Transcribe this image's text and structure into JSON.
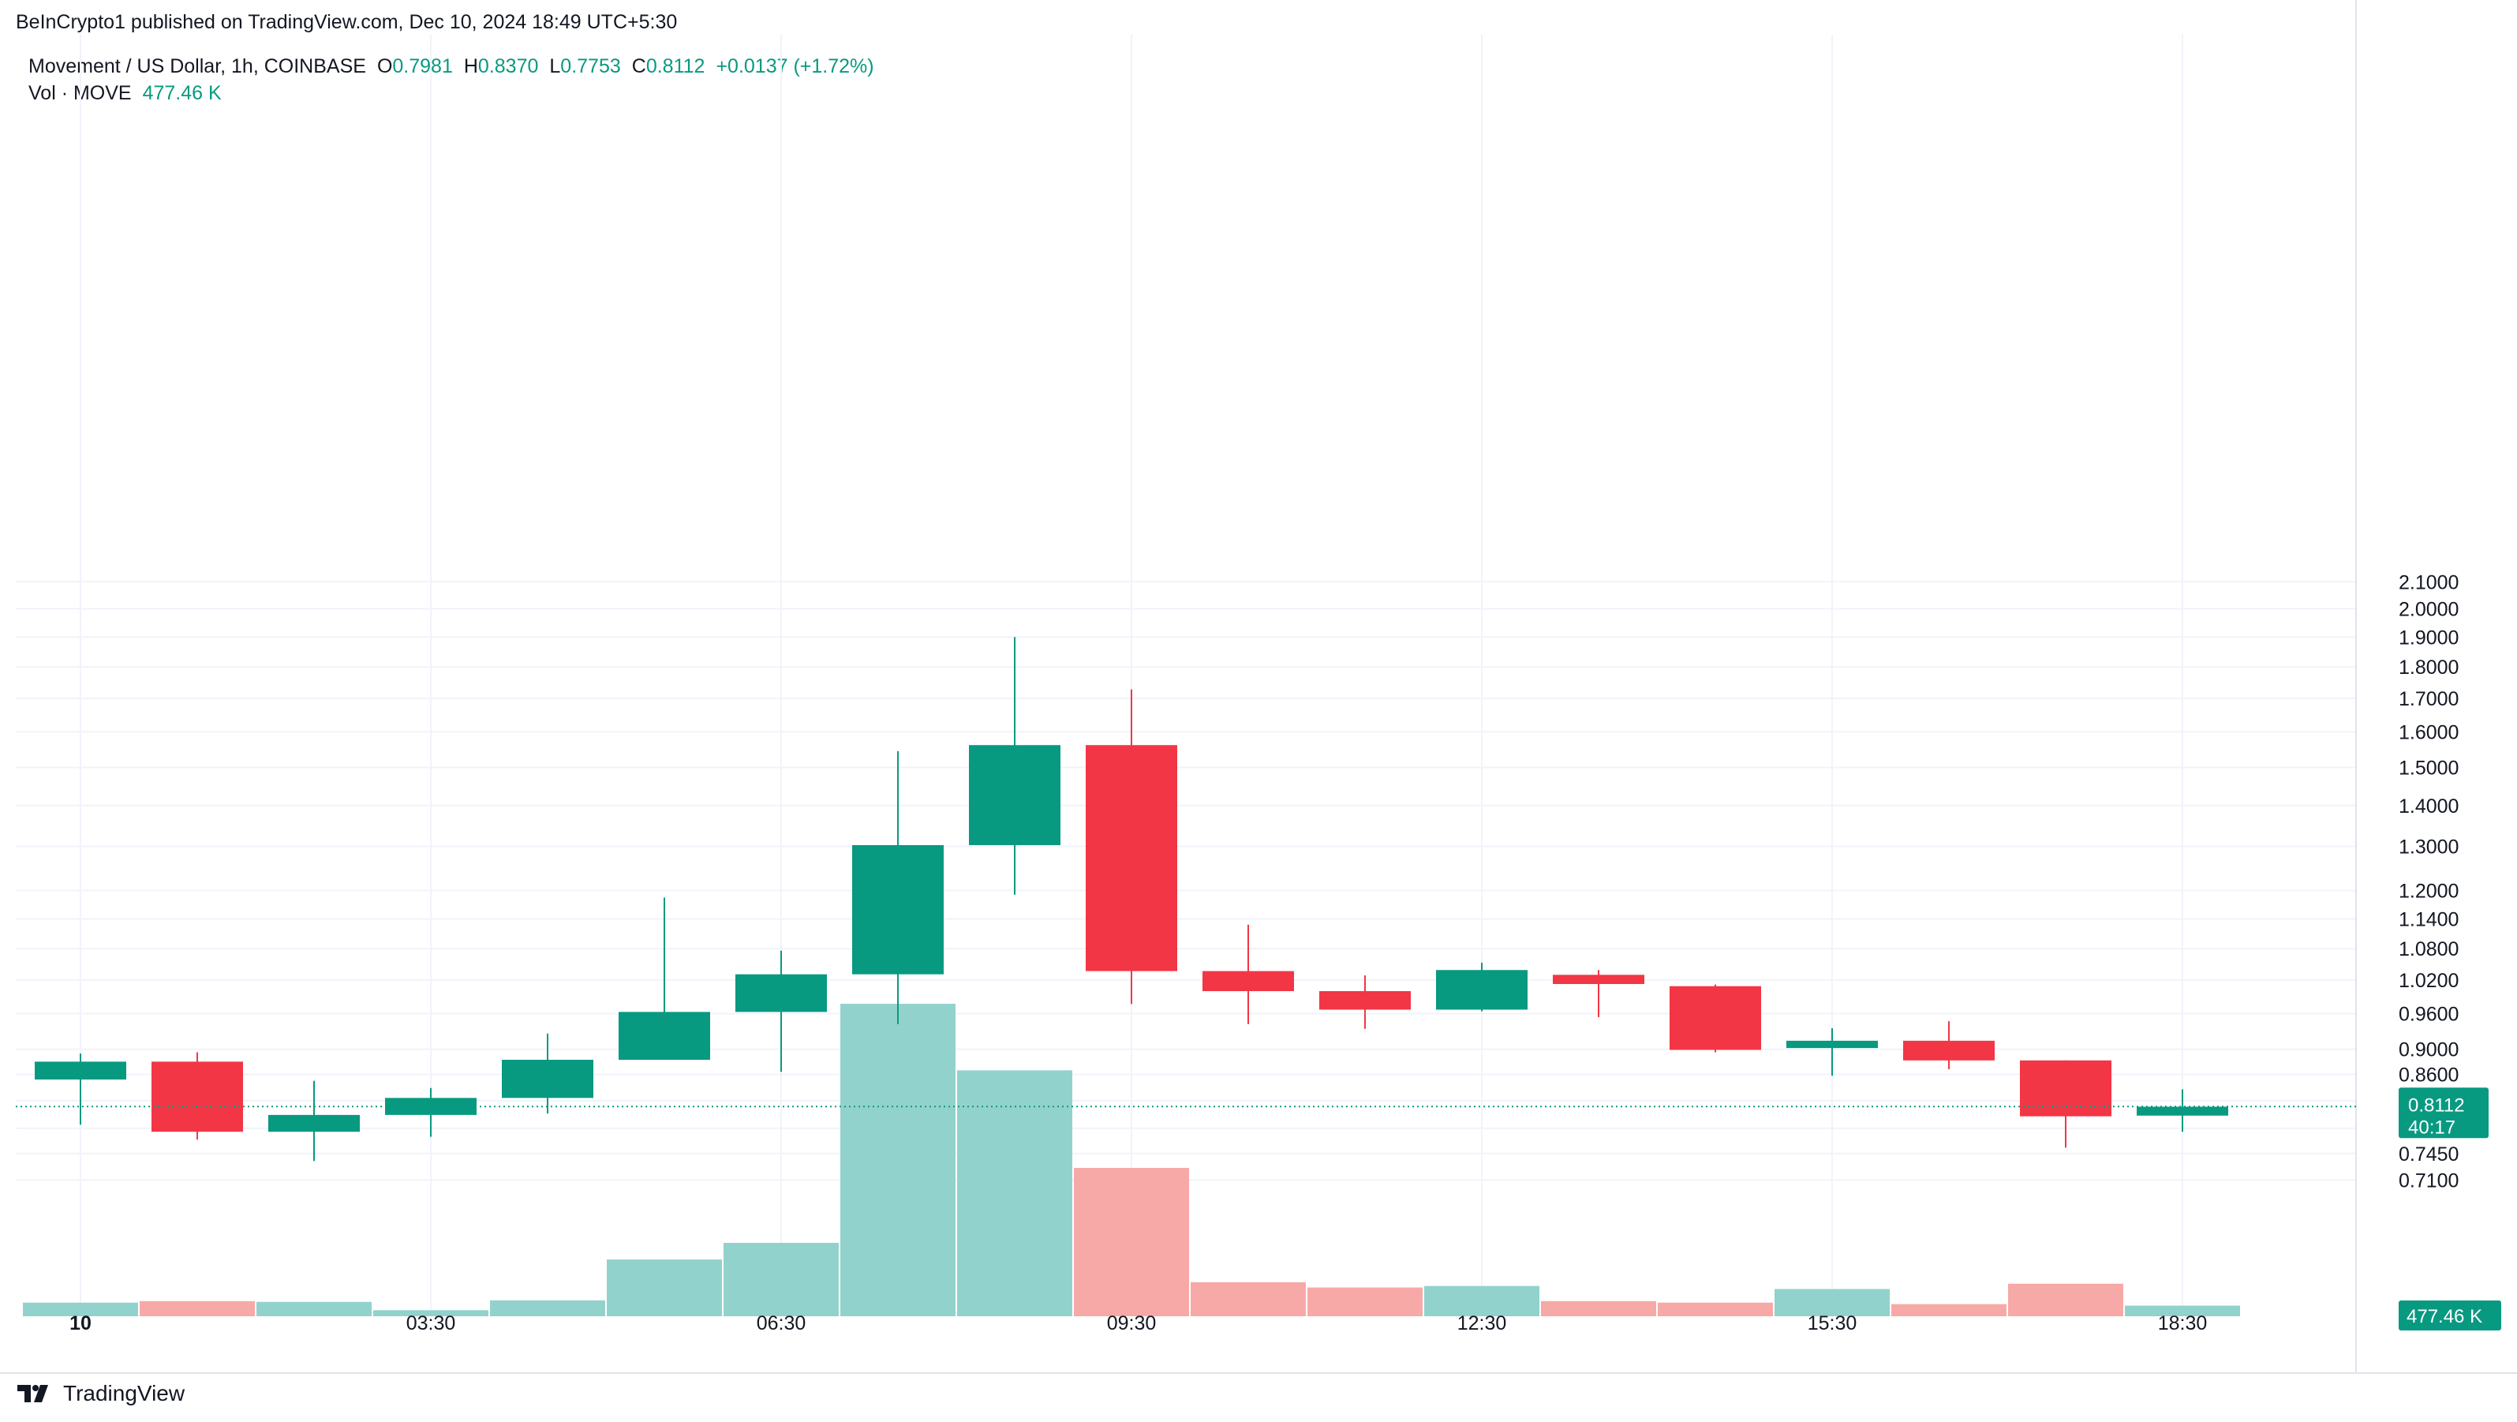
{
  "header": {
    "publisher": "BeInCrypto1 published on TradingView.com, Dec 10, 2024 18:49 UTC+5:30"
  },
  "legend": {
    "symbol": "Movement / US Dollar, 1h, COINBASE",
    "o_label": "O",
    "o_value": "0.7981",
    "h_label": "H",
    "h_value": "0.8370",
    "l_label": "L",
    "l_value": "0.7753",
    "c_label": "C",
    "c_value": "0.8112",
    "change": "+0.0137 (+1.72%)",
    "vol_label": "Vol · MOVE",
    "vol_value": "477.46 K"
  },
  "price_badge": {
    "price": "0.8112",
    "countdown": "40:17"
  },
  "volume_badge": "477.46 K",
  "branding": {
    "logo_text": "TradingView"
  },
  "colors": {
    "up": "#089981",
    "down": "#f23645",
    "up_volume": "#92d2cc",
    "down_volume": "#f7a9a7",
    "grid": "#f0f3fa"
  },
  "chart_data": {
    "type": "candlestick",
    "interval": "1h",
    "y_axis": {
      "scale": "log",
      "range": [
        0.665,
        2.13
      ],
      "position": "right",
      "ticks": [
        "2.1000",
        "2.0000",
        "1.9000",
        "1.8000",
        "1.7000",
        "1.6000",
        "1.5000",
        "1.4000",
        "1.3000",
        "1.2000",
        "1.1400",
        "1.0800",
        "1.0200",
        "0.9600",
        "0.9000",
        "0.8600",
        "0.8200",
        "0.7800",
        "0.7450",
        "0.7100"
      ]
    },
    "x_axis": {
      "ticks": [
        {
          "index": 0,
          "label": "10",
          "bold": true
        },
        {
          "index": 3,
          "label": "03:30"
        },
        {
          "index": 6,
          "label": "06:30"
        },
        {
          "index": 9,
          "label": "09:30"
        },
        {
          "index": 12,
          "label": "12:30"
        },
        {
          "index": 15,
          "label": "15:30"
        },
        {
          "index": 18,
          "label": "18:30"
        }
      ]
    },
    "grid": true,
    "candles": [
      {
        "o": 0.852,
        "h": 0.893,
        "l": 0.785,
        "c": 0.88
      },
      {
        "o": 0.88,
        "h": 0.895,
        "l": 0.764,
        "c": 0.775
      },
      {
        "o": 0.775,
        "h": 0.85,
        "l": 0.735,
        "c": 0.799
      },
      {
        "o": 0.799,
        "h": 0.839,
        "l": 0.768,
        "c": 0.824
      },
      {
        "o": 0.824,
        "h": 0.926,
        "l": 0.801,
        "c": 0.883
      },
      {
        "o": 0.883,
        "h": 1.185,
        "l": 0.883,
        "c": 0.963
      },
      {
        "o": 0.963,
        "h": 1.076,
        "l": 0.864,
        "c": 1.031
      },
      {
        "o": 1.031,
        "h": 1.545,
        "l": 0.942,
        "c": 1.303
      },
      {
        "o": 1.303,
        "h": 1.9,
        "l": 1.191,
        "c": 1.562
      },
      {
        "o": 1.562,
        "h": 1.728,
        "l": 0.977,
        "c": 1.037
      },
      {
        "o": 1.037,
        "h": 1.128,
        "l": 0.942,
        "c": 1.0
      },
      {
        "o": 1.0,
        "h": 1.029,
        "l": 0.934,
        "c": 0.967
      },
      {
        "o": 0.967,
        "h": 1.053,
        "l": 0.964,
        "c": 1.039
      },
      {
        "o": 1.03,
        "h": 1.039,
        "l": 0.954,
        "c": 1.013
      },
      {
        "o": 1.009,
        "h": 1.012,
        "l": 0.895,
        "c": 0.899
      },
      {
        "o": 0.902,
        "h": 0.935,
        "l": 0.858,
        "c": 0.914
      },
      {
        "o": 0.914,
        "h": 0.947,
        "l": 0.868,
        "c": 0.882
      },
      {
        "o": 0.882,
        "h": 0.882,
        "l": 0.753,
        "c": 0.797
      },
      {
        "o": 0.798,
        "h": 0.837,
        "l": 0.775,
        "c": 0.811
      }
    ],
    "volume": [
      {
        "v": 18,
        "dir": "up"
      },
      {
        "v": 20,
        "dir": "down"
      },
      {
        "v": 19,
        "dir": "up"
      },
      {
        "v": 8,
        "dir": "up"
      },
      {
        "v": 21,
        "dir": "up"
      },
      {
        "v": 75,
        "dir": "up"
      },
      {
        "v": 97,
        "dir": "up"
      },
      {
        "v": 413,
        "dir": "up"
      },
      {
        "v": 325,
        "dir": "up"
      },
      {
        "v": 196,
        "dir": "down"
      },
      {
        "v": 45,
        "dir": "down"
      },
      {
        "v": 38,
        "dir": "down"
      },
      {
        "v": 40,
        "dir": "up"
      },
      {
        "v": 20,
        "dir": "down"
      },
      {
        "v": 18,
        "dir": "down"
      },
      {
        "v": 36,
        "dir": "up"
      },
      {
        "v": 16,
        "dir": "down"
      },
      {
        "v": 43,
        "dir": "down"
      },
      {
        "v": 14,
        "dir": "up"
      }
    ],
    "last_price": 0.8112
  }
}
